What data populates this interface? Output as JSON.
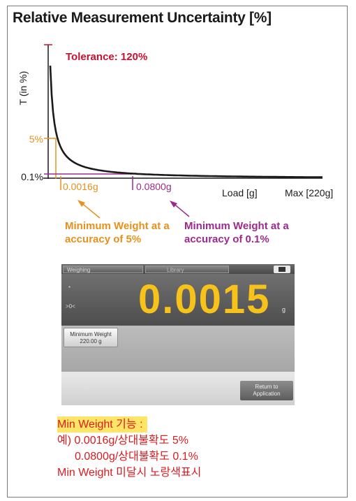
{
  "title": "Relative Measurement Uncertainty [%]",
  "chart_data": {
    "type": "line",
    "title": "Relative Measurement Uncertainty [%]",
    "xlabel": "Load [g]",
    "ylabel": "T (in %)",
    "x_max_label": "Max [220g]",
    "y_ticks": [
      "5%",
      "0.1%"
    ],
    "annotations": {
      "tolerance": "Tolerance: 120%",
      "min5_value": "0.0016g",
      "min01_value": "0.0800g",
      "min5_label_line1": "Minimum Weight at a",
      "min5_label_line2": "accuracy of 5%",
      "min01_label_line1": "Minimum Weight at a",
      "min01_label_line2": "accuracy of 0.1%"
    },
    "series": [
      {
        "x": [
          0.0016,
          0.08
        ],
        "values": [
          5,
          0.1
        ]
      }
    ],
    "colors": {
      "curve": "#1a1a1a",
      "five_percent": "#e8901c",
      "point_one_percent": "#9b2a8c",
      "tolerance": "#c8102e"
    }
  },
  "device": {
    "tab_weighing": "Weighing",
    "tab_library": "Library",
    "stable_symbol": "*",
    "zero_symbol": ">0<",
    "reading": "0.0015",
    "unit": "g",
    "min_weight_line1": "Minimum Weight",
    "min_weight_line2": "220.00 g",
    "return_line1": "Return to",
    "return_line2": "Application"
  },
  "notes": {
    "heading": "Min Weight 기능 :",
    "line1": "예) 0.0016g/상대불확도 5%",
    "line2": "0.0800g/상대불확도 0.1%",
    "line3": "Min Weight 미달시 노랑색표시"
  }
}
